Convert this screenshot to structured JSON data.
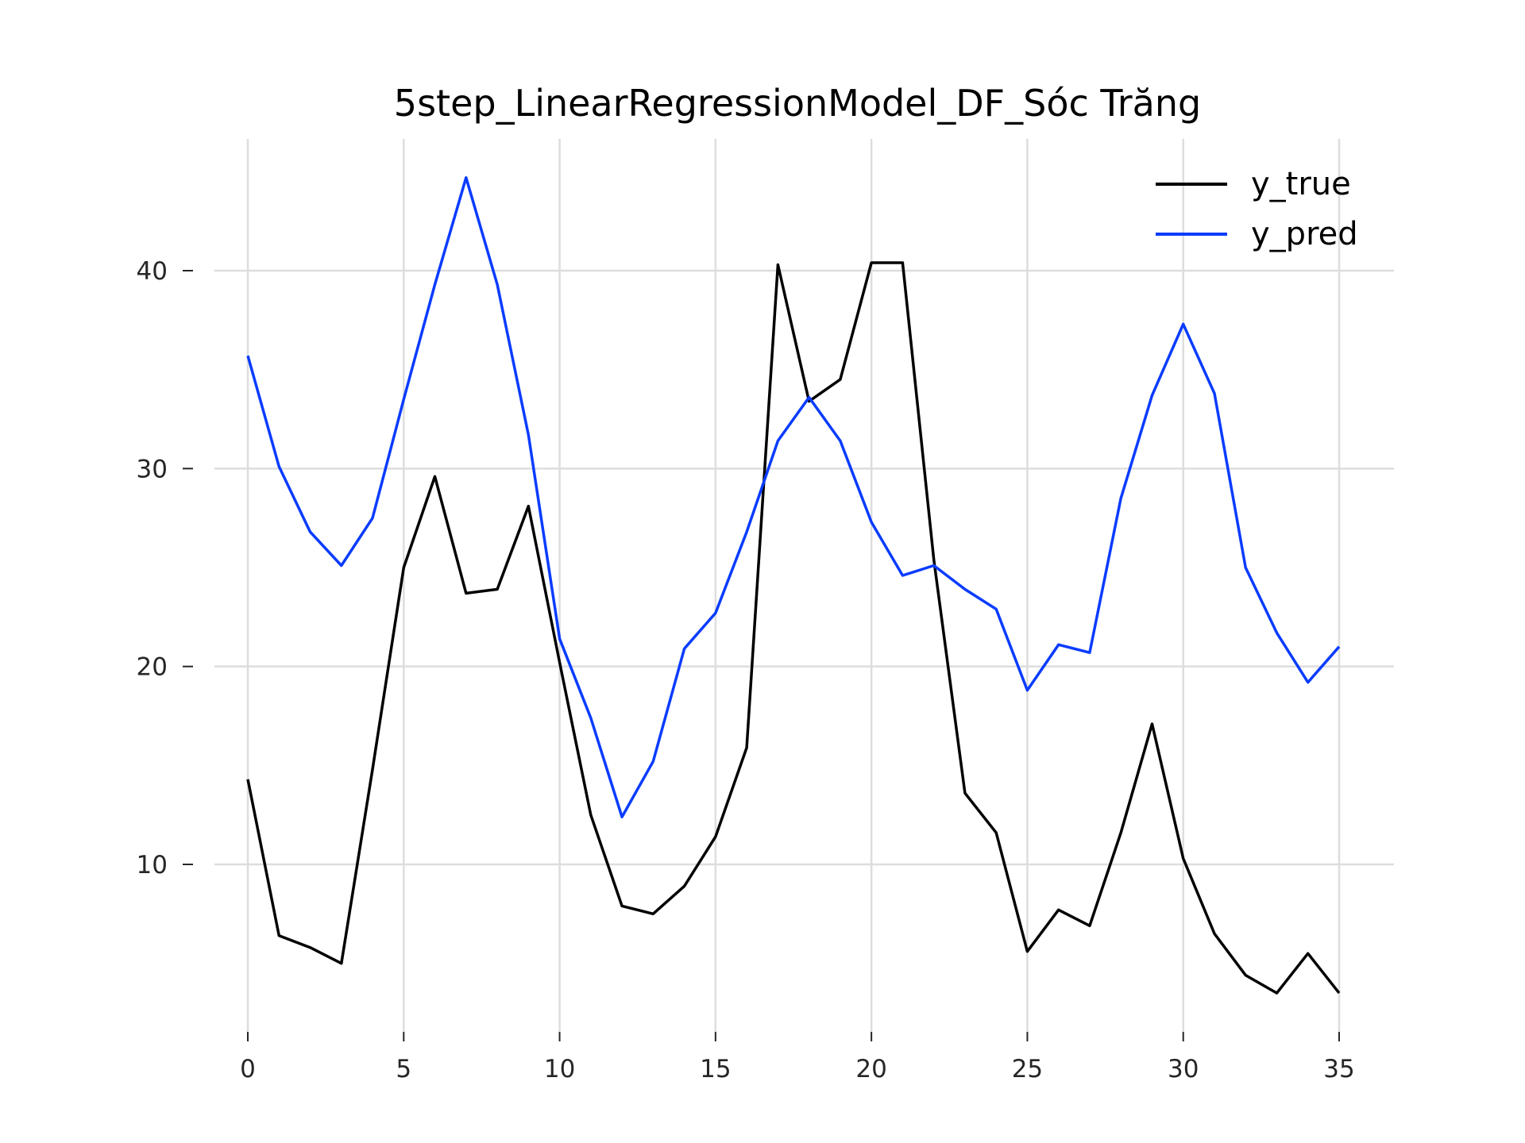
{
  "chart_data": {
    "type": "line",
    "title": "5step_LinearRegressionModel_DF_Sóc Trăng",
    "xlabel": "",
    "ylabel": "",
    "xlim": [
      0,
      35
    ],
    "ylim": [
      1.5,
      46.5
    ],
    "x_ticks": [
      0,
      5,
      10,
      15,
      20,
      25,
      30,
      35
    ],
    "y_ticks": [
      10,
      20,
      30,
      40
    ],
    "grid": true,
    "legend": "top-right",
    "x": [
      0,
      1,
      2,
      3,
      4,
      5,
      6,
      7,
      8,
      9,
      10,
      11,
      12,
      13,
      14,
      15,
      16,
      17,
      18,
      19,
      20,
      21,
      22,
      23,
      24,
      25,
      26,
      27,
      28,
      29,
      30,
      31,
      32,
      33,
      34,
      35
    ],
    "series": [
      {
        "name": "y_true",
        "color": "#000000",
        "values": [
          14.3,
          6.4,
          5.8,
          5.0,
          14.8,
          25.0,
          29.6,
          23.7,
          23.9,
          28.1,
          20.2,
          12.5,
          7.9,
          7.5,
          8.9,
          11.4,
          15.9,
          40.3,
          33.4,
          34.5,
          40.4,
          40.4,
          25.4,
          13.6,
          11.6,
          5.6,
          7.7,
          6.9,
          11.6,
          17.1,
          10.3,
          6.5,
          4.4,
          3.5,
          5.5,
          3.5
        ]
      },
      {
        "name": "y_pred",
        "color": "#0a3cff",
        "values": [
          35.7,
          30.1,
          26.8,
          25.1,
          27.5,
          33.5,
          39.3,
          44.7,
          39.3,
          31.7,
          21.4,
          17.4,
          12.4,
          15.2,
          20.9,
          22.7,
          26.8,
          31.4,
          33.6,
          31.4,
          27.3,
          24.6,
          25.1,
          23.9,
          22.9,
          18.8,
          21.1,
          20.7,
          28.5,
          33.7,
          37.3,
          33.8,
          25.0,
          21.7,
          19.2,
          21.0
        ]
      }
    ]
  }
}
